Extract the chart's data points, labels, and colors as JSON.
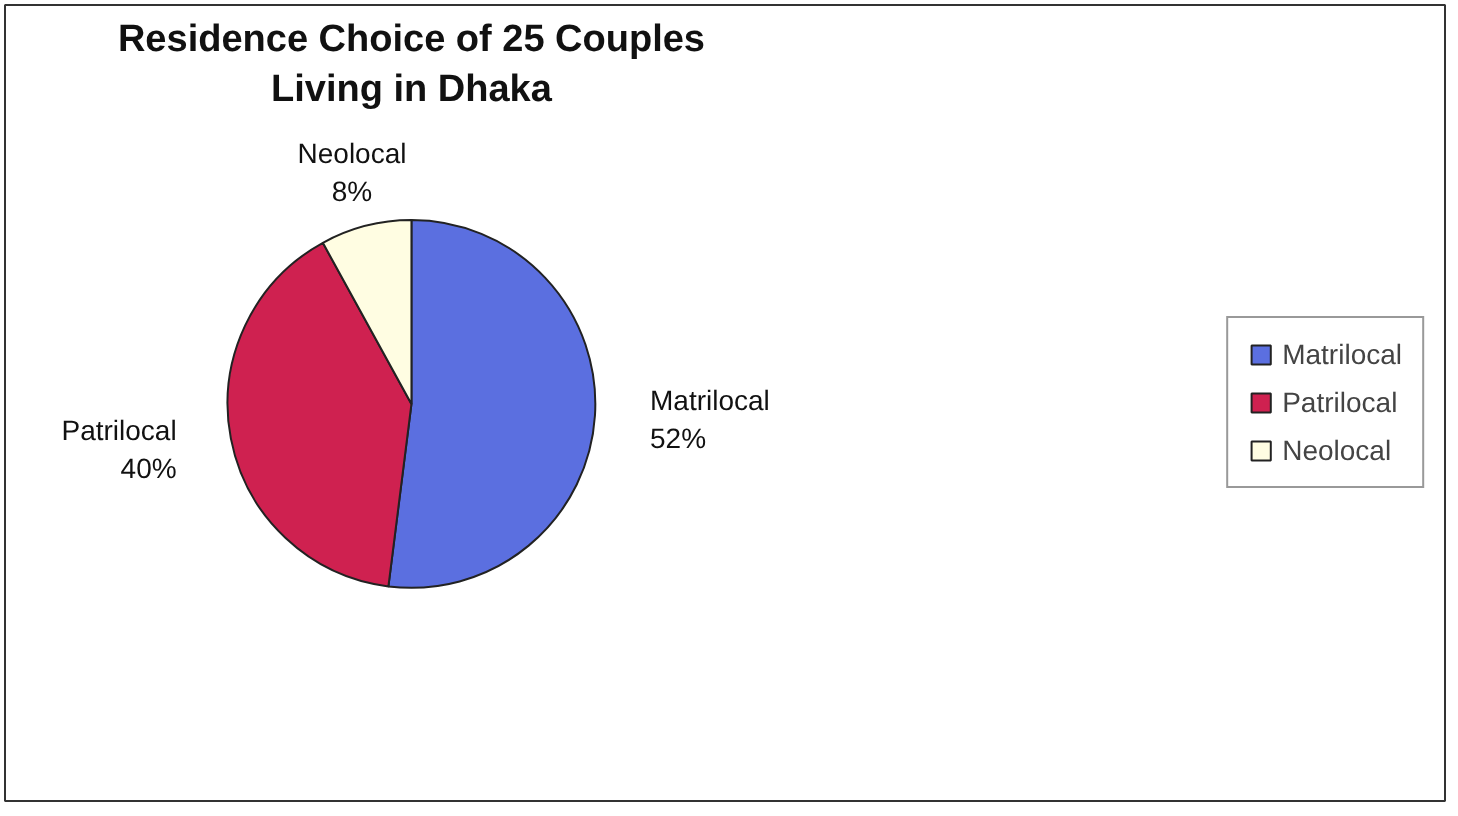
{
  "chart_data": {
    "type": "pie",
    "title": "Residence Choice of 25 Couples Living in Dhaka",
    "categories": [
      "Matrilocal",
      "Patrilocal",
      "Neolocal"
    ],
    "values": [
      52,
      40,
      8
    ],
    "value_labels": [
      "52%",
      "40%",
      "8%"
    ],
    "colors": [
      "#5b6fe0",
      "#cf2150",
      "#fffde2"
    ],
    "legend": "right"
  }
}
